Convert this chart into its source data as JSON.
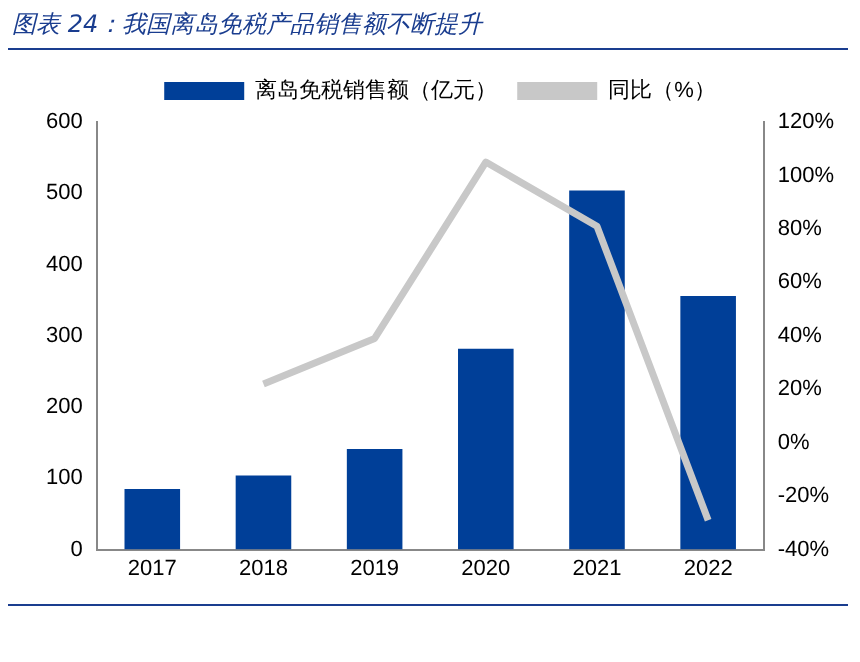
{
  "chart_data": {
    "type": "bar",
    "title": "图表 24：我国离岛免税产品销售额不断提升",
    "categories": [
      "2017",
      "2018",
      "2019",
      "2020",
      "2021",
      "2022"
    ],
    "series": [
      {
        "name": "离岛免税销售额（亿元）",
        "color": "#003f98",
        "values": [
          85,
          104,
          141,
          282,
          504,
          356
        ]
      },
      {
        "name": "同比（%）",
        "type": "line",
        "axis": "y2",
        "color": "#c8c8c8",
        "values": [
          null,
          22,
          39,
          105,
          81,
          -29
        ]
      }
    ],
    "ylim": [
      0,
      600
    ],
    "yticks": [
      0,
      100,
      200,
      300,
      400,
      500,
      600
    ],
    "y2lim": [
      -40,
      120
    ],
    "y2ticks": [
      {
        "value": -40,
        "label": "-40%"
      },
      {
        "value": -20,
        "label": "-20%"
      },
      {
        "value": 0,
        "label": "0%"
      },
      {
        "value": 20,
        "label": "20%"
      },
      {
        "value": 40,
        "label": "40%"
      },
      {
        "value": 60,
        "label": "60%"
      },
      {
        "value": 80,
        "label": "80%"
      },
      {
        "value": 100,
        "label": "100%"
      },
      {
        "value": 120,
        "label": "120%"
      }
    ],
    "legend": "top",
    "grid": false
  }
}
